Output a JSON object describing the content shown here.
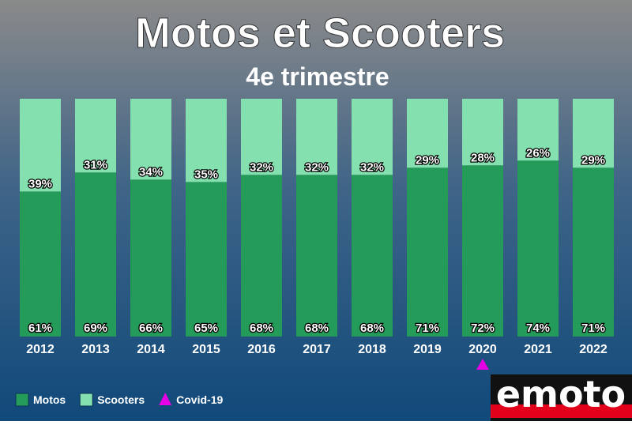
{
  "chart_data": {
    "type": "bar",
    "stacked": true,
    "title": "Motos et Scooters",
    "subtitle": "4e trimestre",
    "categories": [
      "2012",
      "2013",
      "2014",
      "2015",
      "2016",
      "2017",
      "2018",
      "2019",
      "2020",
      "2021",
      "2022"
    ],
    "series": [
      {
        "name": "Motos",
        "color": "#259b5a",
        "values": [
          61,
          69,
          66,
          65,
          68,
          68,
          68,
          71,
          72,
          74,
          71
        ],
        "value_labels": [
          "61%",
          "69%",
          "66%",
          "65%",
          "68%",
          "68%",
          "68%",
          "71%",
          "72%",
          "74%",
          "71%"
        ]
      },
      {
        "name": "Scooters",
        "color": "#84e0ae",
        "values": [
          39,
          31,
          34,
          35,
          32,
          32,
          32,
          29,
          28,
          26,
          29
        ],
        "value_labels": [
          "39%",
          "31%",
          "34%",
          "35%",
          "32%",
          "32%",
          "32%",
          "29%",
          "28%",
          "26%",
          "29%"
        ]
      }
    ],
    "markers": [
      {
        "name": "Covid-19",
        "color": "#e600e6",
        "category": "2020"
      }
    ],
    "logo": "emoto"
  }
}
